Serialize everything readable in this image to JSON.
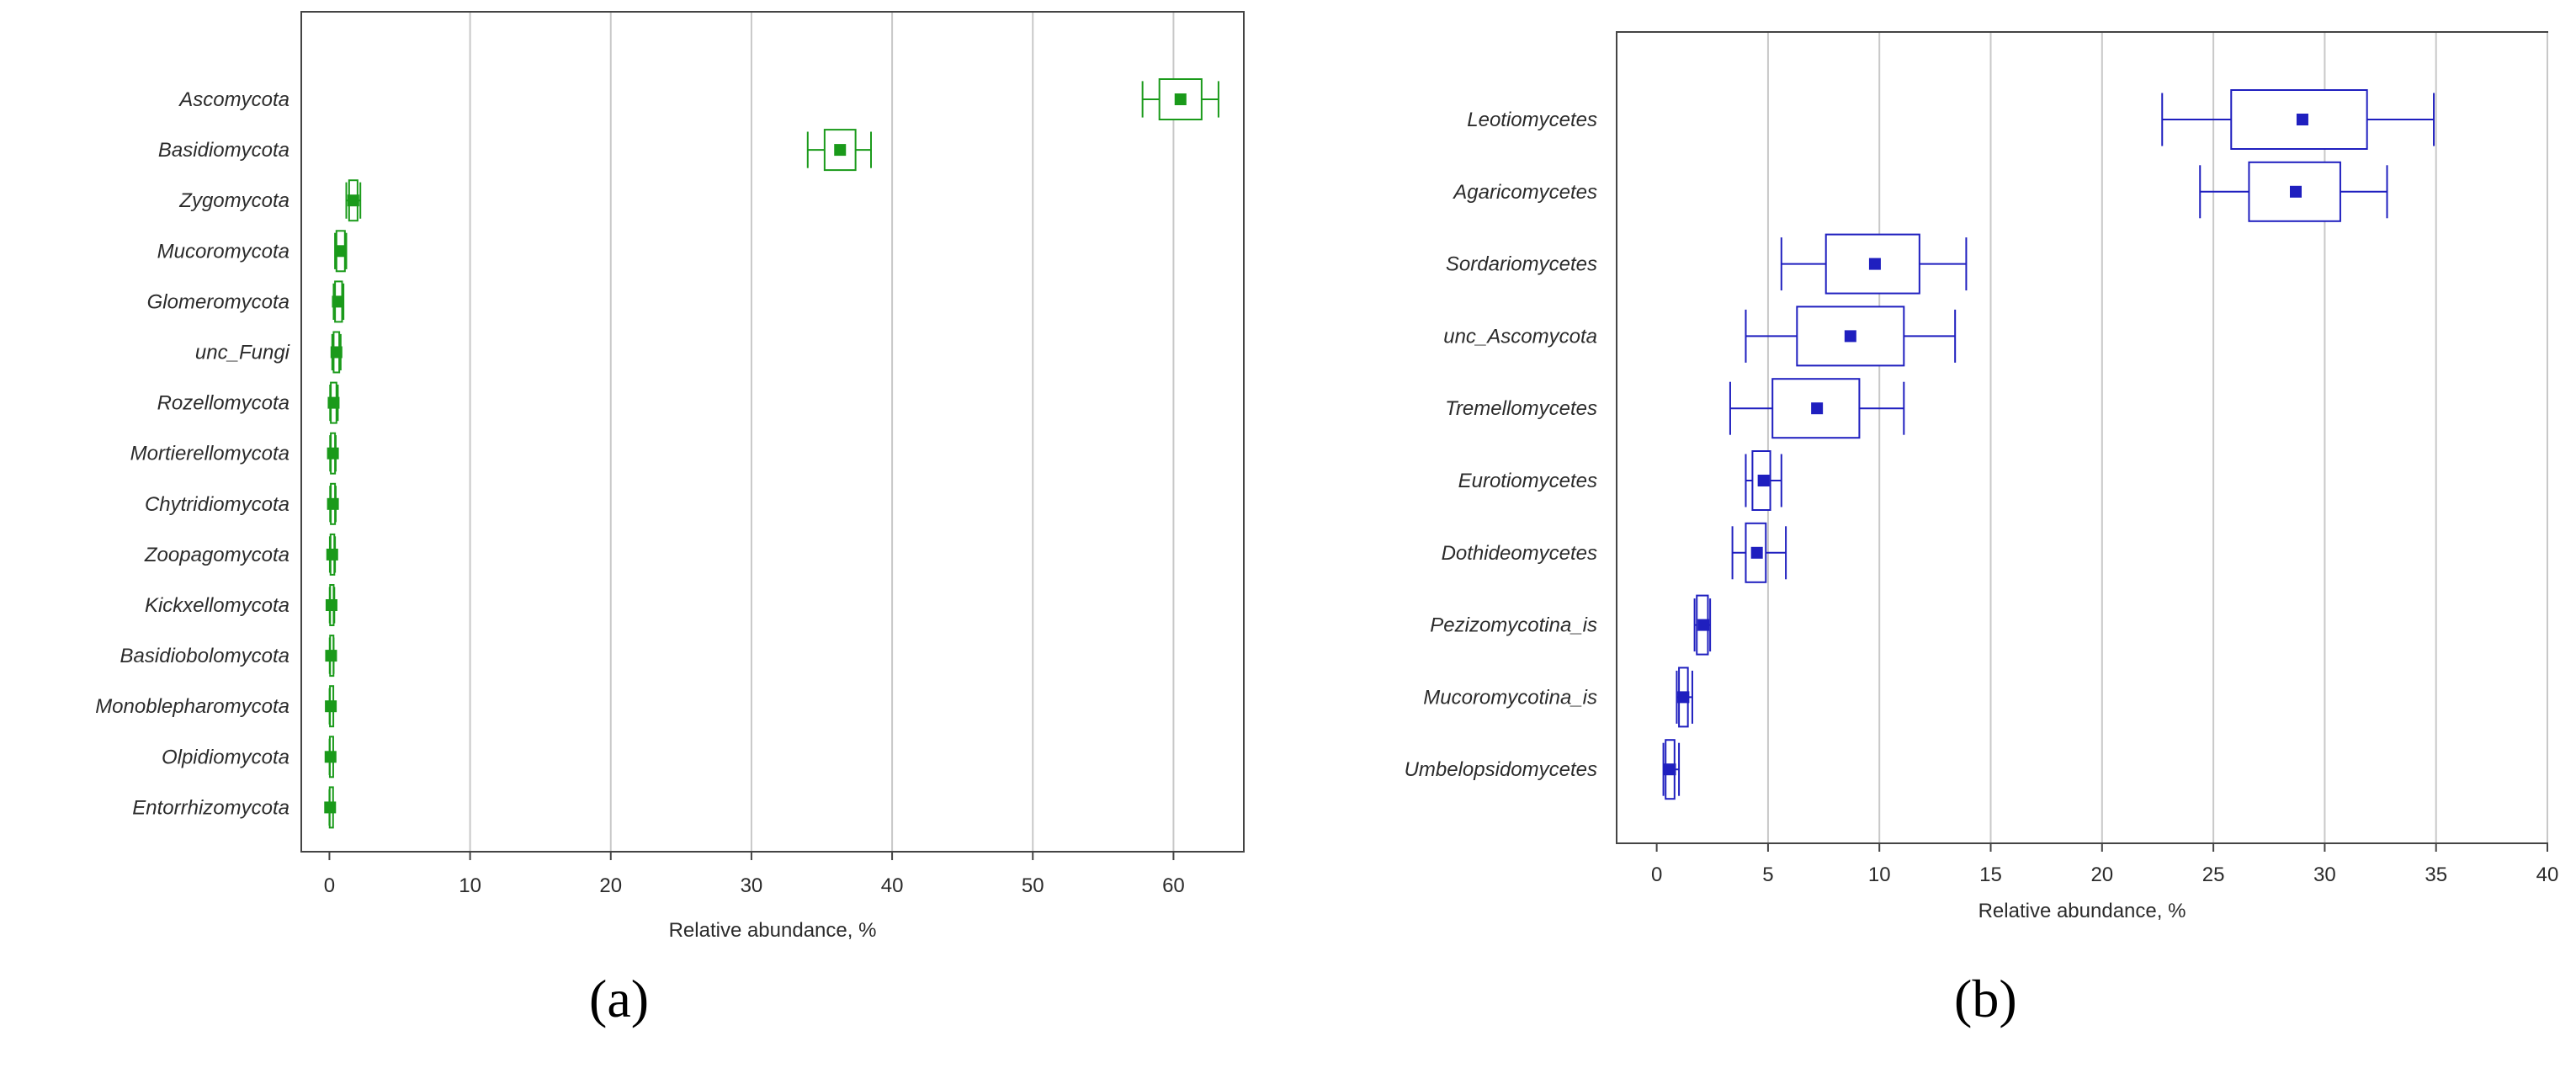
{
  "captions": {
    "a": "(a)",
    "b": "(b)"
  },
  "chart_data": [
    {
      "id": "a",
      "type": "box",
      "color": "#1a9a1a",
      "title": "",
      "xlabel": "Relative abundance, %",
      "ylabel": "",
      "xlim": [
        -2,
        65
      ],
      "xticks": [
        0,
        10,
        20,
        30,
        40,
        50,
        60
      ],
      "grid": true,
      "categories": [
        "Ascomycota",
        "Basidiomycota",
        "Zygomycota",
        "Mucoromycota",
        "Glomeromycota",
        "unc_Fungi",
        "Rozellomycota",
        "Mortierellomycota",
        "Chytridiomycota",
        "Zoopagomycota",
        "Kickxellomycota",
        "Basidiobolomycota",
        "Monoblepharomycota",
        "Olpidiomycota",
        "Entorrhizomycota"
      ],
      "series": [
        {
          "name": "Ascomycota",
          "mean": 60.5,
          "q1": 59.0,
          "q3": 62.0,
          "min": 57.8,
          "max": 63.2
        },
        {
          "name": "Basidiomycota",
          "mean": 36.3,
          "q1": 35.2,
          "q3": 37.4,
          "min": 34.0,
          "max": 38.5
        },
        {
          "name": "Zygomycota",
          "mean": 1.7,
          "q1": 1.4,
          "q3": 2.0,
          "min": 1.2,
          "max": 2.2
        },
        {
          "name": "Mucoromycota",
          "mean": 0.8,
          "q1": 0.5,
          "q3": 1.1,
          "min": 0.4,
          "max": 1.2
        },
        {
          "name": "Glomeromycota",
          "mean": 0.6,
          "q1": 0.4,
          "q3": 0.9,
          "min": 0.3,
          "max": 1.0
        },
        {
          "name": "unc_Fungi",
          "mean": 0.5,
          "q1": 0.3,
          "q3": 0.7,
          "min": 0.2,
          "max": 0.8
        },
        {
          "name": "Rozellomycota",
          "mean": 0.3,
          "q1": 0.1,
          "q3": 0.5,
          "min": 0.05,
          "max": 0.6
        },
        {
          "name": "Mortierellomycota",
          "mean": 0.25,
          "q1": 0.1,
          "q3": 0.4,
          "min": 0.05,
          "max": 0.45
        },
        {
          "name": "Chytridiomycota",
          "mean": 0.25,
          "q1": 0.1,
          "q3": 0.4,
          "min": 0.05,
          "max": 0.45
        },
        {
          "name": "Zoopagomycota",
          "mean": 0.2,
          "q1": 0.08,
          "q3": 0.35,
          "min": 0.03,
          "max": 0.4
        },
        {
          "name": "Kickxellomycota",
          "mean": 0.15,
          "q1": 0.05,
          "q3": 0.3,
          "min": 0.02,
          "max": 0.35
        },
        {
          "name": "Basidiobolomycota",
          "mean": 0.12,
          "q1": 0.05,
          "q3": 0.25,
          "min": 0.02,
          "max": 0.3
        },
        {
          "name": "Monoblepharomycota",
          "mean": 0.1,
          "q1": 0.04,
          "q3": 0.22,
          "min": 0.01,
          "max": 0.25
        },
        {
          "name": "Olpidiomycota",
          "mean": 0.08,
          "q1": 0.03,
          "q3": 0.2,
          "min": 0.01,
          "max": 0.22
        },
        {
          "name": "Entorrhizomycota",
          "mean": 0.05,
          "q1": 0.02,
          "q3": 0.15,
          "min": 0.0,
          "max": 0.18
        }
      ]
    },
    {
      "id": "b",
      "type": "box",
      "color": "#1f1fbf",
      "title": "",
      "xlabel": "Relative abundance, %",
      "ylabel": "",
      "xlim": [
        -1.8,
        40
      ],
      "xticks": [
        0,
        5,
        10,
        15,
        20,
        25,
        30,
        35,
        40
      ],
      "grid": true,
      "categories": [
        "Leotiomycetes",
        "Agaricomycetes",
        "Sordariomycetes",
        "unc_Ascomycota",
        "Tremellomycetes",
        "Eurotiomycetes",
        "Dothideomycetes",
        "Pezizomycotina_is",
        "Mucoromycotina_is",
        "Umbelopsidomycetes"
      ],
      "series": [
        {
          "name": "Leotiomycetes",
          "mean": 29.0,
          "q1": 25.8,
          "q3": 31.9,
          "min": 22.7,
          "max": 34.9
        },
        {
          "name": "Agaricomycetes",
          "mean": 28.7,
          "q1": 26.6,
          "q3": 30.7,
          "min": 24.4,
          "max": 32.8
        },
        {
          "name": "Sordariomycetes",
          "mean": 9.8,
          "q1": 7.6,
          "q3": 11.8,
          "min": 5.6,
          "max": 13.9
        },
        {
          "name": "unc_Ascomycota",
          "mean": 8.7,
          "q1": 6.3,
          "q3": 11.1,
          "min": 4.0,
          "max": 13.4
        },
        {
          "name": "Tremellomycetes",
          "mean": 7.2,
          "q1": 5.2,
          "q3": 9.1,
          "min": 3.3,
          "max": 11.1
        },
        {
          "name": "Eurotiomycetes",
          "mean": 4.8,
          "q1": 4.3,
          "q3": 5.1,
          "min": 4.0,
          "max": 5.6
        },
        {
          "name": "Dothideomycetes",
          "mean": 4.5,
          "q1": 4.0,
          "q3": 4.9,
          "min": 3.4,
          "max": 5.8
        },
        {
          "name": "Pezizomycotina_is",
          "mean": 2.1,
          "q1": 1.8,
          "q3": 2.3,
          "min": 1.7,
          "max": 2.4
        },
        {
          "name": "Mucoromycotina_is",
          "mean": 1.2,
          "q1": 1.0,
          "q3": 1.4,
          "min": 0.9,
          "max": 1.6
        },
        {
          "name": "Umbelopsidomycetes",
          "mean": 0.6,
          "q1": 0.4,
          "q3": 0.8,
          "min": 0.3,
          "max": 1.0
        }
      ]
    }
  ]
}
